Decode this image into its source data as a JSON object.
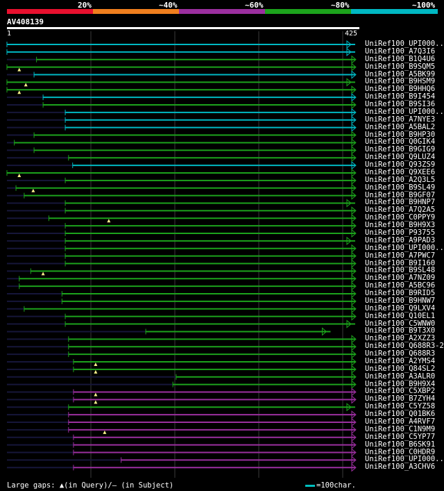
{
  "legend": {
    "labels": [
      "20%",
      "~40%",
      "~60%",
      "~80%",
      "~100%"
    ],
    "colors": [
      "#e8102e",
      "#f07f1e",
      "#9b2f9f",
      "#1ca31c",
      "#00b8c3"
    ]
  },
  "query": {
    "id": "AV408139",
    "start": "1",
    "end": "425",
    "length": 425
  },
  "hits": [
    {
      "label": "UniRef100_UPI000..",
      "color": "#00b8c3",
      "qs": 1,
      "qe": 425,
      "tail": 0,
      "gaps": []
    },
    {
      "label": "UniRef100_A7Q3I6",
      "color": "#00b8c3",
      "qs": 1,
      "qe": 425,
      "tail": 0,
      "gaps": []
    },
    {
      "label": "UniRef100_B1Q4U6",
      "color": "#1ca31c",
      "qs": 37,
      "qe": 425,
      "tail": 1,
      "gaps": []
    },
    {
      "label": "UniRef100_B9SQM5",
      "color": "#1ca31c",
      "qs": 1,
      "qe": 425,
      "tail": 1,
      "gaps": [
        16
      ]
    },
    {
      "label": "UniRef100_A5BK99",
      "color": "#00b8c3",
      "qs": 34,
      "qe": 425,
      "tail": 1,
      "gaps": []
    },
    {
      "label": "UniRef100_B9HSM9",
      "color": "#1ca31c",
      "qs": 1,
      "qe": 425,
      "tail": 0,
      "gaps": [
        24
      ]
    },
    {
      "label": "UniRef100_B9HHQ6",
      "color": "#1ca31c",
      "qs": 1,
      "qe": 425,
      "tail": 1,
      "gaps": [
        16
      ]
    },
    {
      "label": "UniRef100_B9I454",
      "color": "#00b8c3",
      "qs": 45,
      "qe": 425,
      "tail": 1,
      "gaps": []
    },
    {
      "label": "UniRef100_B9SI36",
      "color": "#1ca31c",
      "qs": 45,
      "qe": 425,
      "tail": 1,
      "gaps": []
    },
    {
      "label": "UniRef100_UPI000..",
      "color": "#00b8c3",
      "qs": 72,
      "qe": 425,
      "tail": 1,
      "gaps": []
    },
    {
      "label": "UniRef100_A7NYE3",
      "color": "#00b8c3",
      "qs": 72,
      "qe": 425,
      "tail": 1,
      "gaps": []
    },
    {
      "label": "UniRef100_A5BAL2",
      "color": "#00b8c3",
      "qs": 72,
      "qe": 425,
      "tail": 1,
      "gaps": []
    },
    {
      "label": "UniRef100_B9HP30",
      "color": "#1ca31c",
      "qs": 34,
      "qe": 425,
      "tail": 1,
      "gaps": []
    },
    {
      "label": "UniRef100_Q0GIK4",
      "color": "#1ca31c",
      "qs": 10,
      "qe": 425,
      "tail": 1,
      "gaps": []
    },
    {
      "label": "UniRef100_B9GIG9",
      "color": "#1ca31c",
      "qs": 34,
      "qe": 425,
      "tail": 1,
      "gaps": []
    },
    {
      "label": "UniRef100_Q9LUZ4",
      "color": "#1ca31c",
      "qs": 76,
      "qe": 425,
      "tail": 1,
      "gaps": []
    },
    {
      "label": "UniRef100_Q93ZS9",
      "color": "#00b8c3",
      "qs": 81,
      "qe": 425,
      "tail": 1,
      "gaps": []
    },
    {
      "label": "UniRef100_Q9XEE6",
      "color": "#1ca31c",
      "qs": 1,
      "qe": 425,
      "tail": 1,
      "gaps": [
        16
      ]
    },
    {
      "label": "UniRef100_A2Q3L5",
      "color": "#1ca31c",
      "qs": 72,
      "qe": 425,
      "tail": 1,
      "gaps": []
    },
    {
      "label": "UniRef100_B9SL49",
      "color": "#1ca31c",
      "qs": 12,
      "qe": 425,
      "tail": 1,
      "gaps": [
        33
      ]
    },
    {
      "label": "UniRef100_B9GF07",
      "color": "#1ca31c",
      "qs": 22,
      "qe": 425,
      "tail": 1,
      "gaps": []
    },
    {
      "label": "UniRef100_B9HNP7",
      "color": "#1ca31c",
      "qs": 72,
      "qe": 425,
      "tail": 0,
      "gaps": []
    },
    {
      "label": "UniRef100_A7Q2A5",
      "color": "#1ca31c",
      "qs": 72,
      "qe": 425,
      "tail": 1,
      "gaps": []
    },
    {
      "label": "UniRef100_C0PPY9",
      "color": "#1ca31c",
      "qs": 52,
      "qe": 425,
      "tail": 1,
      "gaps": [
        125
      ]
    },
    {
      "label": "UniRef100_B9H9X3",
      "color": "#1ca31c",
      "qs": 72,
      "qe": 425,
      "tail": 1,
      "gaps": []
    },
    {
      "label": "UniRef100_P93755",
      "color": "#1ca31c",
      "qs": 72,
      "qe": 425,
      "tail": 1,
      "gaps": []
    },
    {
      "label": "UniRef100_A9PAD3",
      "color": "#1ca31c",
      "qs": 72,
      "qe": 425,
      "tail": 0,
      "gaps": []
    },
    {
      "label": "UniRef100_UPI000..",
      "color": "#1ca31c",
      "qs": 72,
      "qe": 425,
      "tail": 1,
      "gaps": []
    },
    {
      "label": "UniRef100_A7PWC7",
      "color": "#1ca31c",
      "qs": 72,
      "qe": 425,
      "tail": 1,
      "gaps": []
    },
    {
      "label": "UniRef100_B9I160",
      "color": "#1ca31c",
      "qs": 72,
      "qe": 425,
      "tail": 1,
      "gaps": []
    },
    {
      "label": "UniRef100_B9SL48",
      "color": "#1ca31c",
      "qs": 30,
      "qe": 425,
      "tail": 1,
      "gaps": [
        45
      ]
    },
    {
      "label": "UniRef100_A7NZ09",
      "color": "#1ca31c",
      "qs": 16,
      "qe": 425,
      "tail": 1,
      "gaps": []
    },
    {
      "label": "UniRef100_A5BC96",
      "color": "#1ca31c",
      "qs": 16,
      "qe": 425,
      "tail": 1,
      "gaps": []
    },
    {
      "label": "UniRef100_B9RID5",
      "color": "#1ca31c",
      "qs": 68,
      "qe": 425,
      "tail": 1,
      "gaps": []
    },
    {
      "label": "UniRef100_B9HNW7",
      "color": "#1ca31c",
      "qs": 68,
      "qe": 425,
      "tail": 1,
      "gaps": []
    },
    {
      "label": "UniRef100_Q9LXV4",
      "color": "#1ca31c",
      "qs": 22,
      "qe": 425,
      "tail": 1,
      "gaps": []
    },
    {
      "label": "UniRef100_Q10EL1",
      "color": "#1ca31c",
      "qs": 72,
      "qe": 425,
      "tail": 1,
      "gaps": []
    },
    {
      "label": "UniRef100_C5WNW0",
      "color": "#1ca31c",
      "qs": 72,
      "qe": 425,
      "tail": 0,
      "gaps": []
    },
    {
      "label": "UniRef100_B9T3X0",
      "color": "#1ca31c",
      "qs": 170,
      "qe": 395,
      "tail": 0,
      "gaps": []
    },
    {
      "label": "UniRef100_A2XZZ3",
      "color": "#1ca31c",
      "qs": 76,
      "qe": 425,
      "tail": 1,
      "gaps": []
    },
    {
      "label": "UniRef100_Q688R3-2",
      "color": "#1ca31c",
      "qs": 76,
      "qe": 425,
      "tail": 1,
      "gaps": []
    },
    {
      "label": "UniRef100_Q688R3",
      "color": "#1ca31c",
      "qs": 76,
      "qe": 425,
      "tail": 1,
      "gaps": []
    },
    {
      "label": "UniRef100_A2YMS4",
      "color": "#1ca31c",
      "qs": 82,
      "qe": 425,
      "tail": 1,
      "gaps": [
        109
      ]
    },
    {
      "label": "UniRef100_Q84SL2",
      "color": "#1ca31c",
      "qs": 82,
      "qe": 425,
      "tail": 1,
      "gaps": [
        109
      ]
    },
    {
      "label": "UniRef100_A3ALR0",
      "color": "#1ca31c",
      "qs": 207,
      "qe": 425,
      "tail": 1,
      "gaps": []
    },
    {
      "label": "UniRef100_B9H9X4",
      "color": "#1ca31c",
      "qs": 203,
      "qe": 425,
      "tail": 1,
      "gaps": []
    },
    {
      "label": "UniRef100_C5XBP2",
      "color": "#9b2f9f",
      "qs": 82,
      "qe": 425,
      "tail": 1,
      "gaps": [
        109
      ]
    },
    {
      "label": "UniRef100_B7ZYH4",
      "color": "#9b2f9f",
      "qs": 82,
      "qe": 425,
      "tail": 1,
      "gaps": [
        109
      ]
    },
    {
      "label": "UniRef100_C5YZ58",
      "color": "#1ca31c",
      "qs": 76,
      "qe": 425,
      "tail": 0,
      "gaps": []
    },
    {
      "label": "UniRef100_Q01BK6",
      "color": "#9b2f9f",
      "qs": 76,
      "qe": 425,
      "tail": 1,
      "gaps": []
    },
    {
      "label": "UniRef100_A4RVF7",
      "color": "#9b2f9f",
      "qs": 76,
      "qe": 425,
      "tail": 1,
      "gaps": []
    },
    {
      "label": "UniRef100_C1N9M9",
      "color": "#9b2f9f",
      "qs": 76,
      "qe": 425,
      "tail": 1,
      "gaps": [
        120
      ]
    },
    {
      "label": "UniRef100_C5YP77",
      "color": "#9b2f9f",
      "qs": 82,
      "qe": 425,
      "tail": 1,
      "gaps": []
    },
    {
      "label": "UniRef100_B6SK91",
      "color": "#9b2f9f",
      "qs": 82,
      "qe": 425,
      "tail": 1,
      "gaps": []
    },
    {
      "label": "UniRef100_C0HDR9",
      "color": "#9b2f9f",
      "qs": 82,
      "qe": 425,
      "tail": 1,
      "gaps": []
    },
    {
      "label": "UniRef100_UPI000..",
      "color": "#9b2f9f",
      "qs": 140,
      "qe": 425,
      "tail": 1,
      "gaps": []
    },
    {
      "label": "UniRef100_A3CHV6",
      "color": "#9b2f9f",
      "qs": 82,
      "qe": 425,
      "tail": 1,
      "gaps": []
    }
  ],
  "footer": {
    "gaps_text": "Large gaps: ▲(in Query)/– (in Subject)",
    "scale_text": "=100char."
  }
}
